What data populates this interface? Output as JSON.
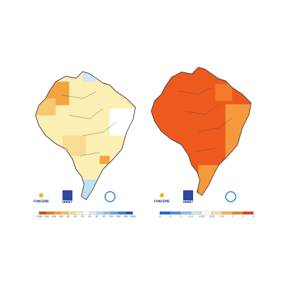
{
  "maps": [
    {
      "logos": [
        "FUNCEME",
        "INMET"
      ],
      "legend": {
        "labels": [
          "-1000",
          "-300",
          "-200",
          "-100",
          "-50",
          "-30",
          "-15",
          "15",
          "30",
          "50",
          "100",
          "200",
          "300",
          "1000"
        ]
      }
    },
    {
      "logos": [
        "FUNCEME",
        "INMET"
      ],
      "legend": {
        "labels": [
          "-5",
          "-3",
          "-1",
          "-0.5",
          "-0.25",
          "0.25",
          "0.5",
          "1",
          "3",
          "5"
        ]
      }
    }
  ]
}
